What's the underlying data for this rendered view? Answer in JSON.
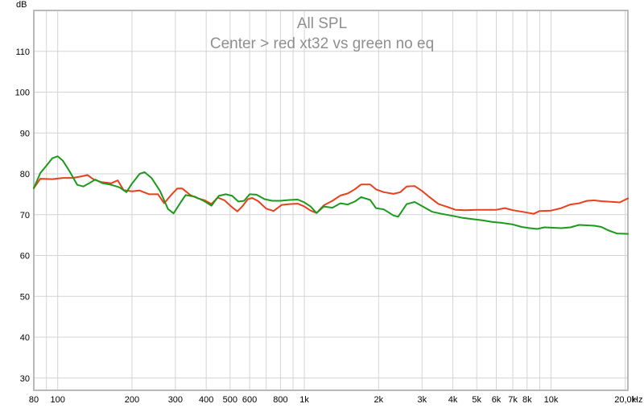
{
  "chart_data": {
    "type": "line",
    "title": "All SPL",
    "subtitle": "Center > red xt32 vs green no eq",
    "ylabel": "dB",
    "xlabel": "Hz",
    "x_scale": "log",
    "xlim": [
      80,
      20500
    ],
    "ylim": [
      27,
      120
    ],
    "grid": true,
    "legend": "none",
    "y_ticks": [
      30,
      40,
      50,
      60,
      70,
      80,
      90,
      100,
      110
    ],
    "x_ticks": [
      {
        "value": 80,
        "label": "80"
      },
      {
        "value": 100,
        "label": "100"
      },
      {
        "value": 200,
        "label": "200"
      },
      {
        "value": 300,
        "label": "300"
      },
      {
        "value": 400,
        "label": "400"
      },
      {
        "value": 500,
        "label": "500"
      },
      {
        "value": 600,
        "label": "600"
      },
      {
        "value": 800,
        "label": "800"
      },
      {
        "value": 1000,
        "label": "1k"
      },
      {
        "value": 2000,
        "label": "2k"
      },
      {
        "value": 3000,
        "label": "3k"
      },
      {
        "value": 4000,
        "label": "4k"
      },
      {
        "value": 5000,
        "label": "5k"
      },
      {
        "value": 6000,
        "label": "6k"
      },
      {
        "value": 7000,
        "label": "7k"
      },
      {
        "value": 8000,
        "label": "8k"
      },
      {
        "value": 10000,
        "label": "10k"
      },
      {
        "value": 20000,
        "label": "20,0k"
      }
    ],
    "minor_gridlines": [
      90,
      700,
      900,
      9000
    ],
    "series": [
      {
        "color": "#e8401c",
        "points": [
          [
            80,
            76.5
          ],
          [
            85,
            78.8
          ],
          [
            95,
            78.7
          ],
          [
            105,
            79
          ],
          [
            115,
            79
          ],
          [
            125,
            79.4
          ],
          [
            132,
            79.7
          ],
          [
            140,
            78.6
          ],
          [
            150,
            78
          ],
          [
            165,
            77.7
          ],
          [
            175,
            78.4
          ],
          [
            185,
            76
          ],
          [
            200,
            75.7
          ],
          [
            215,
            75.9
          ],
          [
            235,
            75
          ],
          [
            255,
            75
          ],
          [
            270,
            72.8
          ],
          [
            290,
            75
          ],
          [
            305,
            76.4
          ],
          [
            320,
            76.4
          ],
          [
            345,
            74.8
          ],
          [
            370,
            74
          ],
          [
            395,
            73.5
          ],
          [
            420,
            72.6
          ],
          [
            445,
            74.2
          ],
          [
            475,
            73.5
          ],
          [
            505,
            72
          ],
          [
            535,
            70.8
          ],
          [
            560,
            72
          ],
          [
            590,
            73.8
          ],
          [
            615,
            74.1
          ],
          [
            650,
            73.3
          ],
          [
            700,
            71.5
          ],
          [
            750,
            70.9
          ],
          [
            810,
            72.4
          ],
          [
            870,
            72.6
          ],
          [
            940,
            72.7
          ],
          [
            1000,
            72
          ],
          [
            1060,
            71
          ],
          [
            1120,
            70.4
          ],
          [
            1200,
            72.3
          ],
          [
            1300,
            73.4
          ],
          [
            1400,
            74.7
          ],
          [
            1500,
            75.2
          ],
          [
            1600,
            76.2
          ],
          [
            1700,
            77.4
          ],
          [
            1850,
            77.4
          ],
          [
            1950,
            76.2
          ],
          [
            2100,
            75.5
          ],
          [
            2300,
            75.1
          ],
          [
            2450,
            75.5
          ],
          [
            2600,
            76.9
          ],
          [
            2800,
            77
          ],
          [
            3000,
            75.8
          ],
          [
            3200,
            74.4
          ],
          [
            3500,
            72.6
          ],
          [
            3800,
            71.9
          ],
          [
            4100,
            71.2
          ],
          [
            4500,
            71.1
          ],
          [
            5000,
            71.2
          ],
          [
            5500,
            71.2
          ],
          [
            6000,
            71.2
          ],
          [
            6500,
            71.6
          ],
          [
            7000,
            71.1
          ],
          [
            7500,
            70.8
          ],
          [
            8000,
            70.5
          ],
          [
            8500,
            70.2
          ],
          [
            9000,
            70.9
          ],
          [
            10000,
            71
          ],
          [
            11000,
            71.6
          ],
          [
            12000,
            72.5
          ],
          [
            13000,
            72.8
          ],
          [
            14000,
            73.4
          ],
          [
            15000,
            73.5
          ],
          [
            16000,
            73.3
          ],
          [
            17000,
            73.2
          ],
          [
            18000,
            73.1
          ],
          [
            19000,
            73
          ],
          [
            20500,
            74
          ]
        ]
      },
      {
        "color": "#1c9a1c",
        "points": [
          [
            80,
            76.5
          ],
          [
            85,
            80.2
          ],
          [
            90,
            82
          ],
          [
            95,
            83.8
          ],
          [
            100,
            84.3
          ],
          [
            105,
            83.2
          ],
          [
            112,
            80.5
          ],
          [
            120,
            77.3
          ],
          [
            127,
            76.9
          ],
          [
            135,
            77.8
          ],
          [
            142,
            78.6
          ],
          [
            152,
            77.7
          ],
          [
            165,
            77.3
          ],
          [
            178,
            76.7
          ],
          [
            190,
            75.5
          ],
          [
            200,
            77.6
          ],
          [
            215,
            80
          ],
          [
            225,
            80.4
          ],
          [
            240,
            79
          ],
          [
            260,
            75.8
          ],
          [
            280,
            71.4
          ],
          [
            295,
            70.3
          ],
          [
            315,
            73
          ],
          [
            330,
            74.8
          ],
          [
            360,
            74.4
          ],
          [
            390,
            73.4
          ],
          [
            420,
            72.2
          ],
          [
            450,
            74.6
          ],
          [
            480,
            75
          ],
          [
            510,
            74.6
          ],
          [
            540,
            73.2
          ],
          [
            570,
            73.4
          ],
          [
            600,
            75
          ],
          [
            640,
            74.9
          ],
          [
            690,
            73.8
          ],
          [
            740,
            73.4
          ],
          [
            800,
            73.4
          ],
          [
            870,
            73.6
          ],
          [
            940,
            73.7
          ],
          [
            1000,
            73
          ],
          [
            1060,
            72
          ],
          [
            1120,
            70.4
          ],
          [
            1200,
            72
          ],
          [
            1300,
            71.7
          ],
          [
            1400,
            72.8
          ],
          [
            1500,
            72.5
          ],
          [
            1600,
            73.2
          ],
          [
            1700,
            74.3
          ],
          [
            1850,
            73.6
          ],
          [
            1950,
            71.6
          ],
          [
            2100,
            71.3
          ],
          [
            2300,
            69.8
          ],
          [
            2400,
            69.5
          ],
          [
            2600,
            72.6
          ],
          [
            2800,
            73.1
          ],
          [
            3000,
            72.1
          ],
          [
            3300,
            70.7
          ],
          [
            3600,
            70.2
          ],
          [
            4000,
            69.7
          ],
          [
            4400,
            69.2
          ],
          [
            4800,
            68.9
          ],
          [
            5300,
            68.6
          ],
          [
            5800,
            68.2
          ],
          [
            6300,
            68
          ],
          [
            7000,
            67.6
          ],
          [
            7600,
            67
          ],
          [
            8200,
            66.7
          ],
          [
            8800,
            66.5
          ],
          [
            9400,
            66.9
          ],
          [
            10200,
            66.8
          ],
          [
            11000,
            66.7
          ],
          [
            12000,
            66.9
          ],
          [
            13000,
            67.5
          ],
          [
            14000,
            67.4
          ],
          [
            15000,
            67.3
          ],
          [
            16000,
            67
          ],
          [
            17000,
            66.2
          ],
          [
            18500,
            65.4
          ],
          [
            20500,
            65.3
          ]
        ]
      }
    ]
  }
}
